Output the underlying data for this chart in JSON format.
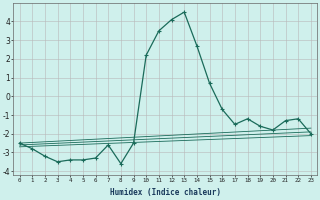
{
  "xlabel": "Humidex (Indice chaleur)",
  "ylabel": "",
  "background_color": "#cff0ec",
  "grid_color": "#b8b8b8",
  "line_color": "#1a6b5a",
  "xlim": [
    -0.5,
    23.5
  ],
  "ylim": [
    -4.2,
    5.0
  ],
  "x_ticks": [
    0,
    1,
    2,
    3,
    4,
    5,
    6,
    7,
    8,
    9,
    10,
    11,
    12,
    13,
    14,
    15,
    16,
    17,
    18,
    19,
    20,
    21,
    22,
    23
  ],
  "y_ticks": [
    -4,
    -3,
    -2,
    -1,
    0,
    1,
    2,
    3,
    4
  ],
  "main_series": {
    "x": [
      0,
      1,
      2,
      3,
      4,
      5,
      6,
      7,
      8,
      9,
      10,
      11,
      12,
      13,
      14,
      15,
      16,
      17,
      18,
      19,
      20,
      21,
      22,
      23
    ],
    "y": [
      -2.5,
      -2.8,
      -3.2,
      -3.5,
      -3.4,
      -3.4,
      -3.3,
      -2.6,
      -3.6,
      -2.5,
      2.2,
      3.5,
      4.1,
      4.5,
      2.7,
      0.7,
      -0.7,
      -1.5,
      -1.2,
      -1.6,
      -1.8,
      -1.3,
      -1.2,
      -2.0
    ]
  },
  "trend_lines": [
    {
      "x": [
        0,
        23
      ],
      "y": [
        -2.5,
        -1.7
      ]
    },
    {
      "x": [
        0,
        23
      ],
      "y": [
        -2.6,
        -1.9
      ]
    },
    {
      "x": [
        0,
        23
      ],
      "y": [
        -2.7,
        -2.1
      ]
    }
  ]
}
